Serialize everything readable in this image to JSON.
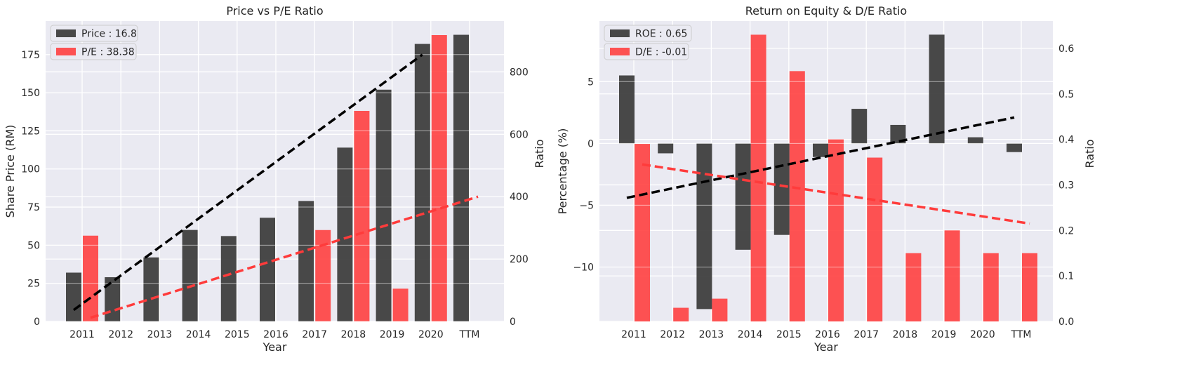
{
  "colors": {
    "price": "#3a3a3a",
    "pe": "#ff3b3b",
    "plot_bg": "#eaeaf2",
    "grid": "#ffffff"
  },
  "chart_data": [
    {
      "type": "bar",
      "title": "Price vs P/E Ratio",
      "xlabel": "Year",
      "ylabel": "Share Price (RM)",
      "ylabel_right": "Ratio",
      "categories": [
        "2011",
        "2012",
        "2013",
        "2014",
        "2015",
        "2016",
        "2017",
        "2018",
        "2019",
        "2020",
        "TTM"
      ],
      "ylim": [
        0,
        197
      ],
      "ylim_right": [
        0,
        963
      ],
      "yticks": [
        "0",
        "25",
        "50",
        "75",
        "100",
        "125",
        "150",
        "175"
      ],
      "yticks_right": [
        "0",
        "200",
        "400",
        "600",
        "800"
      ],
      "legend_position": "top-left",
      "grid": true,
      "series": [
        {
          "name": "Price : 16.8",
          "axis": "left",
          "color": "#3a3a3a",
          "values": [
            32,
            29,
            42,
            60,
            56,
            68,
            79,
            114,
            152,
            182,
            188
          ]
        },
        {
          "name": "P/E : 38.38",
          "axis": "right",
          "color": "#ff3b3b",
          "values": [
            275,
            0,
            0,
            0,
            0,
            0,
            293,
            675,
            105,
            918,
            0
          ]
        }
      ],
      "trendlines": [
        {
          "series": "Price : 16.8",
          "axis": "left",
          "from": {
            "x": "2011",
            "y": 7.5
          },
          "to": {
            "x": "2020",
            "y": 175
          }
        },
        {
          "series": "P/E : 38.38",
          "axis": "right",
          "from": {
            "x": "2011",
            "y": 12
          },
          "to": {
            "x": "TTM",
            "y": 400
          }
        }
      ]
    },
    {
      "type": "bar",
      "title": "Return on Equity & D/E Ratio",
      "xlabel": "Year",
      "ylabel": "Percentage (%)",
      "ylabel_right": "Ratio",
      "categories": [
        "2011",
        "2012",
        "2013",
        "2014",
        "2015",
        "2016",
        "2017",
        "2018",
        "2019",
        "2020",
        "TTM"
      ],
      "ylim": [
        -14.4,
        9.9
      ],
      "ylim_right": [
        0,
        0.66
      ],
      "yticks": [
        "−10",
        "−5",
        "0",
        "5"
      ],
      "yticks_right": [
        "0.0",
        "0.1",
        "0.2",
        "0.3",
        "0.4",
        "0.5",
        "0.6"
      ],
      "legend_position": "top-left",
      "grid": true,
      "series": [
        {
          "name": "ROE : 0.65",
          "axis": "left",
          "color": "#3a3a3a",
          "values": [
            5.5,
            -0.8,
            -13.4,
            -8.6,
            -7.4,
            -1.1,
            2.8,
            1.5,
            8.8,
            0.5,
            -0.7
          ]
        },
        {
          "name": "D/E : -0.01",
          "axis": "right",
          "color": "#ff3b3b",
          "values": [
            0.39,
            0.03,
            0.05,
            0.63,
            0.55,
            0.4,
            0.36,
            0.15,
            0.2,
            0.15,
            0.15
          ]
        }
      ],
      "trendlines": [
        {
          "series": "ROE : 0.65",
          "axis": "left",
          "from": {
            "x": "2011",
            "y": -4.4
          },
          "to": {
            "x": "TTM",
            "y": 2.1
          }
        },
        {
          "series": "D/E : -0.01",
          "axis": "right",
          "from": {
            "x": "2011",
            "y": 0.345
          },
          "to": {
            "x": "TTM",
            "y": 0.215
          }
        }
      ]
    }
  ]
}
